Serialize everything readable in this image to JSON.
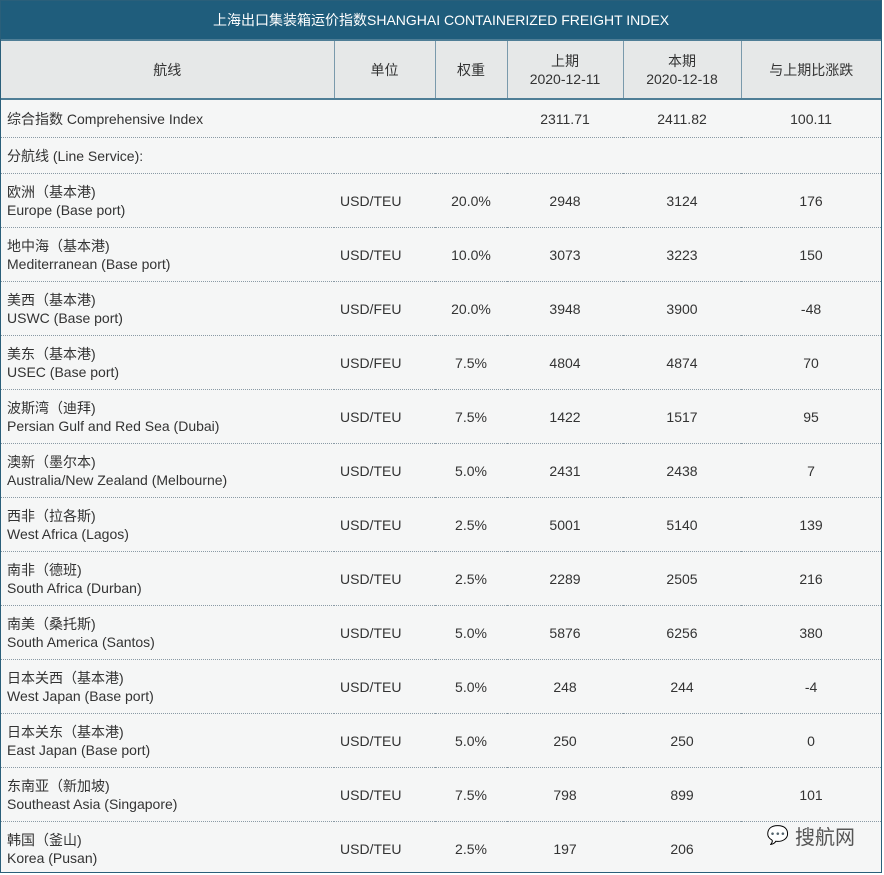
{
  "title": "上海出口集装箱运价指数SHANGHAI CONTAINERIZED FREIGHT INDEX",
  "headers": {
    "route": "航线",
    "unit": "单位",
    "weight": "权重",
    "prev_label": "上期",
    "prev_date": "2020-12-11",
    "curr_label": "本期",
    "curr_date": "2020-12-18",
    "change": "与上期比涨跌"
  },
  "comprehensive": {
    "label": "综合指数 Comprehensive Index",
    "prev": "2311.71",
    "curr": "2411.82",
    "change": "100.11"
  },
  "line_service": "分航线 (Line Service):",
  "rows": [
    {
      "cn": "欧洲（基本港)",
      "en": "Europe (Base port)",
      "unit": "USD/TEU",
      "weight": "20.0%",
      "prev": "2948",
      "curr": "3124",
      "change": "176"
    },
    {
      "cn": "地中海（基本港)",
      "en": "Mediterranean (Base port)",
      "unit": "USD/TEU",
      "weight": "10.0%",
      "prev": "3073",
      "curr": "3223",
      "change": "150"
    },
    {
      "cn": "美西（基本港)",
      "en": "USWC (Base port)",
      "unit": "USD/FEU",
      "weight": "20.0%",
      "prev": "3948",
      "curr": "3900",
      "change": "-48"
    },
    {
      "cn": "美东（基本港)",
      "en": "USEC (Base port)",
      "unit": "USD/FEU",
      "weight": "7.5%",
      "prev": "4804",
      "curr": "4874",
      "change": "70"
    },
    {
      "cn": "波斯湾（迪拜)",
      "en": "Persian Gulf and Red Sea (Dubai)",
      "unit": "USD/TEU",
      "weight": "7.5%",
      "prev": "1422",
      "curr": "1517",
      "change": "95"
    },
    {
      "cn": "澳新（墨尔本)",
      "en": "Australia/New Zealand (Melbourne)",
      "unit": "USD/TEU",
      "weight": "5.0%",
      "prev": "2431",
      "curr": "2438",
      "change": "7"
    },
    {
      "cn": "西非（拉各斯)",
      "en": "West Africa (Lagos)",
      "unit": "USD/TEU",
      "weight": "2.5%",
      "prev": "5001",
      "curr": "5140",
      "change": "139"
    },
    {
      "cn": "南非（德班)",
      "en": "South Africa (Durban)",
      "unit": "USD/TEU",
      "weight": "2.5%",
      "prev": "2289",
      "curr": "2505",
      "change": "216"
    },
    {
      "cn": "南美（桑托斯)",
      "en": "South America (Santos)",
      "unit": "USD/TEU",
      "weight": "5.0%",
      "prev": "5876",
      "curr": "6256",
      "change": "380"
    },
    {
      "cn": "日本关西（基本港)",
      "en": "West Japan (Base port)",
      "unit": "USD/TEU",
      "weight": "5.0%",
      "prev": "248",
      "curr": "244",
      "change": "-4"
    },
    {
      "cn": "日本关东（基本港)",
      "en": "East Japan (Base port)",
      "unit": "USD/TEU",
      "weight": "5.0%",
      "prev": "250",
      "curr": "250",
      "change": "0"
    },
    {
      "cn": "东南亚（新加坡)",
      "en": "Southeast Asia (Singapore)",
      "unit": "USD/TEU",
      "weight": "7.5%",
      "prev": "798",
      "curr": "899",
      "change": "101"
    },
    {
      "cn": "韩国（釜山)",
      "en": "Korea (Pusan)",
      "unit": "USD/TEU",
      "weight": "2.5%",
      "prev": "197",
      "curr": "206",
      "change": ""
    }
  ],
  "watermark": "搜航网"
}
